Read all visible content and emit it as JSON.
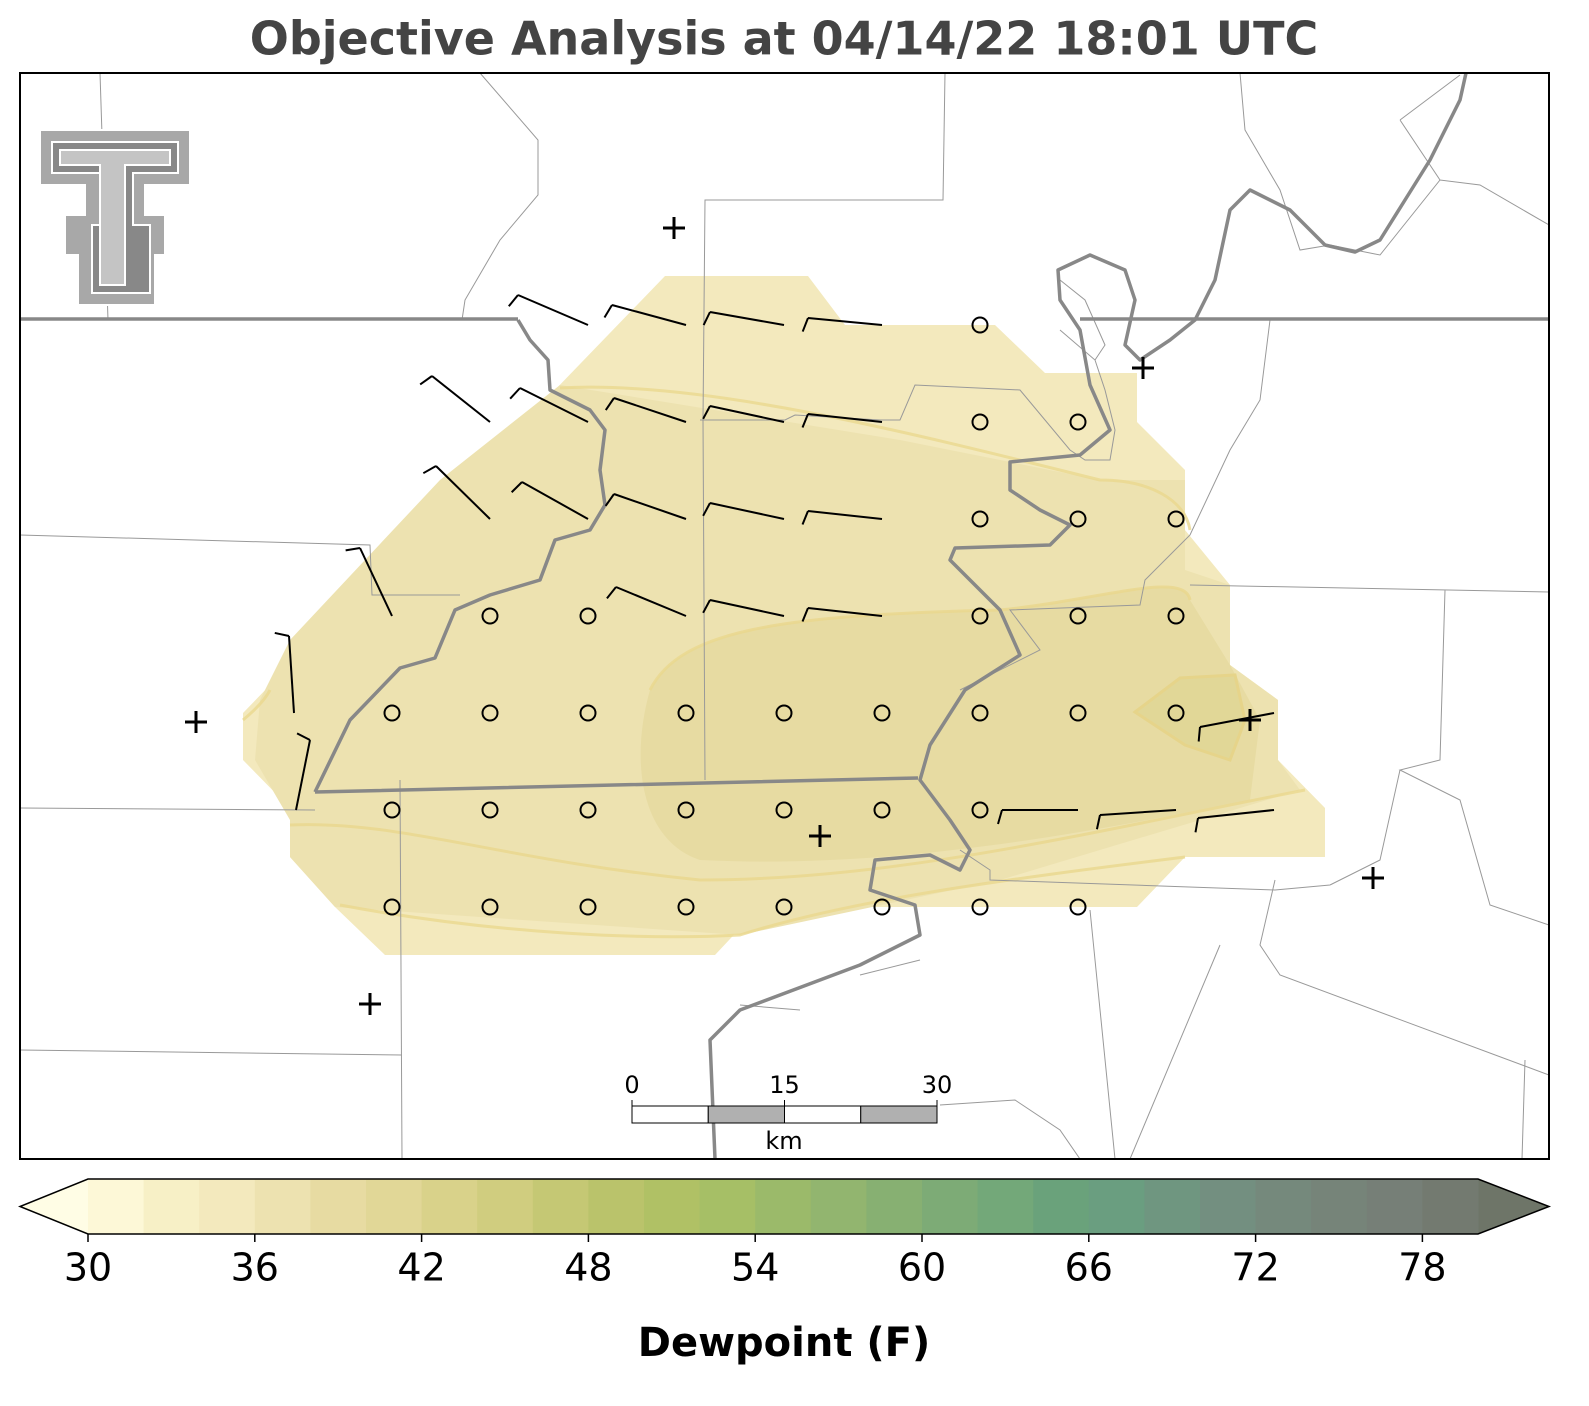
{
  "title": "Objective Analysis at 04/14/22 18:01 UTC",
  "colorbar": {
    "label": "Dewpoint (F)",
    "levels": [
      30,
      32,
      34,
      36,
      38,
      40,
      42,
      44,
      46,
      48,
      50,
      52,
      54,
      56,
      58,
      60,
      62,
      64,
      66,
      68,
      70,
      72,
      74,
      76,
      78,
      80
    ],
    "ticks": [
      30,
      36,
      42,
      48,
      54,
      60,
      66,
      72,
      78
    ],
    "colors": [
      "#fdf8d7",
      "#f7f0c6",
      "#f3e9bd",
      "#ede2b0",
      "#e7dba2",
      "#e1d797",
      "#d9d28a",
      "#d0cd7f",
      "#c5c874",
      "#bac36b",
      "#b0c165",
      "#a6bf66",
      "#9bba6a",
      "#92b56f",
      "#87b072",
      "#7dab76",
      "#73a879",
      "#6aa27b",
      "#6a9e80",
      "#6f9680",
      "#738f80",
      "#75897c",
      "#768479",
      "#767f77",
      "#737a70"
    ],
    "under_color": "#fffde5",
    "over_color": "#6e7568"
  },
  "scale_bar": {
    "ticks": [
      0,
      15,
      30
    ],
    "unit": "km"
  }
}
